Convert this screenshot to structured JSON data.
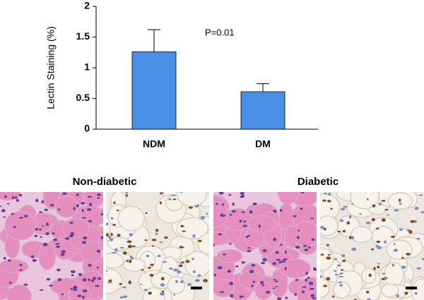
{
  "chart_data": {
    "type": "bar",
    "ylabel": "Lectin Staining (%)",
    "annotation": "P=0.01",
    "categories": [
      "NDM",
      "DM"
    ],
    "values": [
      1.26,
      0.61
    ],
    "errors": [
      0.36,
      0.13
    ],
    "color": "#4a8fe6",
    "ylim": [
      0,
      2
    ],
    "yticks": [
      0,
      0.5,
      1,
      1.5,
      2
    ]
  },
  "panels": [
    {
      "label": "Non-diabetic"
    },
    {
      "label": "Diabetic"
    }
  ]
}
